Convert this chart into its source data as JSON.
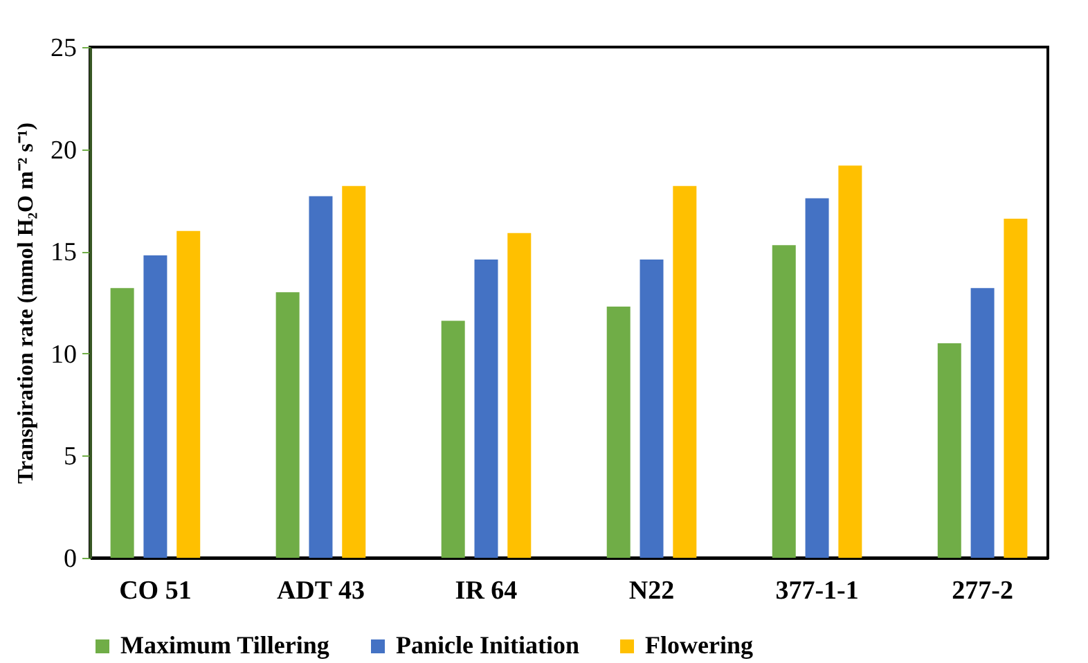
{
  "chart_data": {
    "type": "bar",
    "ylabel": "Transpiration  rate (mmol H₂O m⁻² s⁻¹)",
    "categories": [
      "CO 51",
      "ADT 43",
      "IR 64",
      "N22",
      "377-1-1",
      "277-2"
    ],
    "series": [
      {
        "name": "Maximum Tillering",
        "color": "#70ad47",
        "values": [
          13.2,
          13.0,
          11.6,
          12.3,
          15.3,
          10.5
        ]
      },
      {
        "name": "Panicle Initiation",
        "color": "#4472c4",
        "values": [
          14.8,
          17.7,
          14.6,
          14.6,
          17.6,
          13.2
        ]
      },
      {
        "name": "Flowering",
        "color": "#ffc000",
        "values": [
          16.0,
          18.2,
          15.9,
          18.2,
          19.2,
          16.6
        ]
      }
    ],
    "ylim": [
      0,
      25
    ],
    "yticks": [
      0,
      5,
      10,
      15,
      20,
      25
    ],
    "grid": false,
    "legend": "bottom"
  }
}
